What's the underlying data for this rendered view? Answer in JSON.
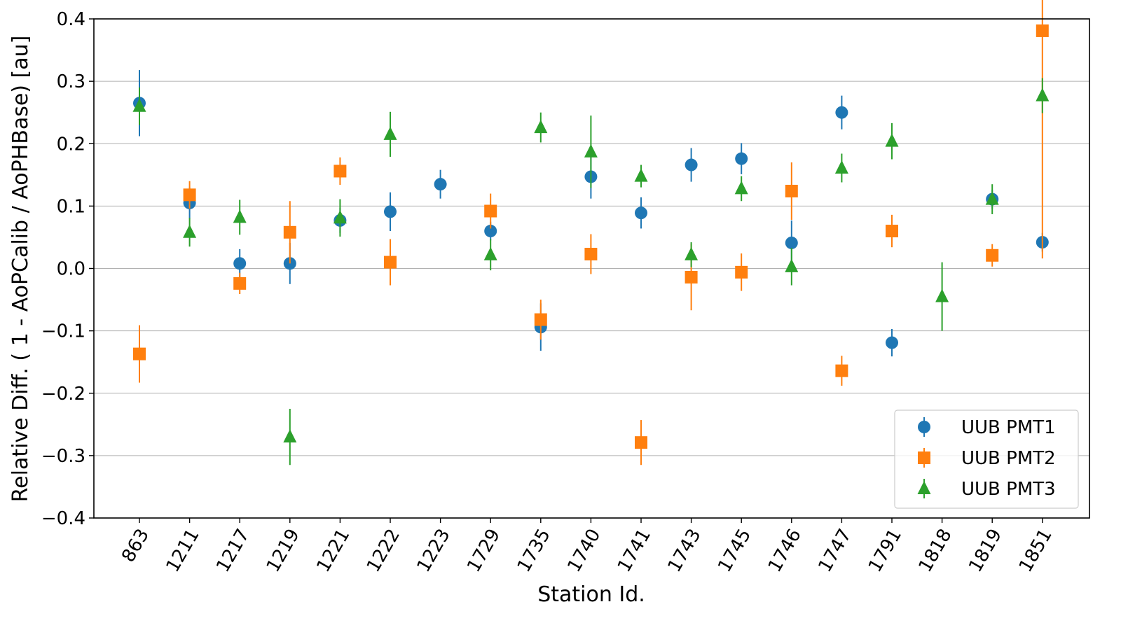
{
  "chart_data": {
    "type": "scatter",
    "xlabel": "Station Id.",
    "ylabel": "Relative Diff. ( 1 - AoPCalib / AoPHBase) [au]",
    "ylim": [
      -0.4,
      0.4
    ],
    "yticks": [
      -0.4,
      -0.3,
      -0.2,
      -0.1,
      0.0,
      0.1,
      0.2,
      0.3,
      0.4
    ],
    "ytick_labels": [
      "−0.4",
      "−0.3",
      "−0.2",
      "−0.1",
      "0.0",
      "0.1",
      "0.2",
      "0.3",
      "0.4"
    ],
    "categories": [
      "863",
      "1211",
      "1217",
      "1219",
      "1221",
      "1222",
      "1223",
      "1729",
      "1735",
      "1740",
      "1741",
      "1743",
      "1745",
      "1746",
      "1747",
      "1791",
      "1818",
      "1819",
      "1851"
    ],
    "grid": "horizontal",
    "legend_position": "bottom-right",
    "series": [
      {
        "name": "UUB PMT1",
        "marker": "circle",
        "color": "#1f77b4",
        "values": [
          0.265,
          0.105,
          0.008,
          0.008,
          0.077,
          0.091,
          0.135,
          0.06,
          -0.094,
          0.147,
          0.089,
          0.166,
          0.176,
          0.041,
          0.25,
          -0.119,
          null,
          0.111,
          0.042
        ],
        "errors": [
          0.053,
          0.025,
          0.023,
          0.033,
          0.02,
          0.031,
          0.023,
          0.015,
          0.038,
          0.035,
          0.025,
          0.027,
          0.025,
          0.036,
          0.027,
          0.022,
          null,
          0.015,
          0.015
        ]
      },
      {
        "name": "UUB PMT2",
        "marker": "square",
        "color": "#ff7f0e",
        "values": [
          -0.137,
          0.118,
          -0.024,
          0.058,
          0.156,
          0.01,
          null,
          0.092,
          -0.082,
          0.023,
          -0.279,
          -0.014,
          -0.006,
          0.124,
          -0.164,
          0.06,
          null,
          0.021,
          0.381
        ],
        "errors": [
          0.046,
          0.022,
          0.017,
          0.05,
          0.022,
          0.037,
          null,
          0.028,
          0.032,
          0.032,
          0.036,
          0.053,
          0.03,
          0.046,
          0.024,
          0.026,
          null,
          0.018,
          0.365
        ]
      },
      {
        "name": "UUB PMT3",
        "marker": "triangle",
        "color": "#2ca02c",
        "values": [
          0.26,
          0.058,
          0.082,
          -0.27,
          0.081,
          0.215,
          null,
          0.022,
          0.226,
          0.187,
          0.148,
          0.022,
          0.128,
          0.003,
          0.161,
          0.204,
          -0.045,
          0.111,
          0.277
        ],
        "errors": [
          0.03,
          0.023,
          0.028,
          0.045,
          0.03,
          0.036,
          null,
          0.025,
          0.024,
          0.058,
          0.018,
          0.02,
          0.02,
          0.03,
          0.023,
          0.029,
          0.055,
          0.024,
          0.028
        ]
      }
    ]
  }
}
